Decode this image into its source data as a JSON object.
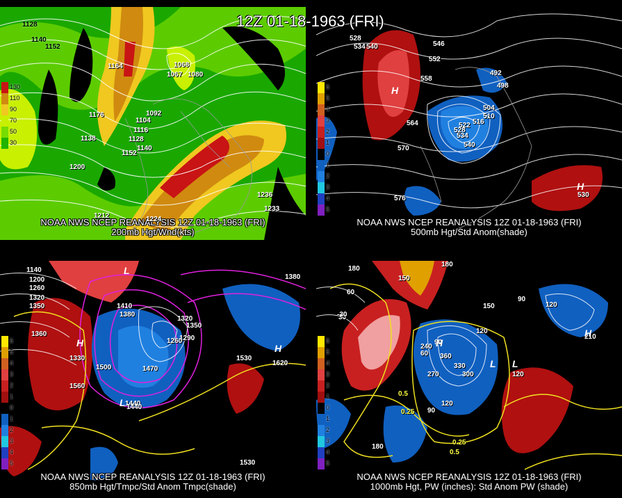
{
  "title": "12Z 01-18-1963 (FRI)",
  "panels": [
    {
      "id": "p1",
      "caption_line1": "NOAA NWS NCEP REANALYSIS 12Z 01-18-1963 (FRI)",
      "caption_line2": "200mb Hgt/Wnd(kts)",
      "legend": [
        {
          "label": "130",
          "color": "#c81414"
        },
        {
          "label": "110",
          "color": "#d08a10"
        },
        {
          "label": "90",
          "color": "#f0c820"
        },
        {
          "label": "70",
          "color": "#c8f000"
        },
        {
          "label": "50",
          "color": "#78dc00"
        },
        {
          "label": "30",
          "color": "#20b400"
        }
      ],
      "contour_labels": [
        "1128",
        "1140",
        "1152",
        "1164",
        "1068",
        "1067",
        "1080",
        "1092",
        "1104",
        "1116",
        "1128",
        "1138",
        "1152",
        "1140",
        "1176",
        "1200",
        "1212",
        "1224",
        "1236",
        "1233"
      ]
    },
    {
      "id": "p2",
      "caption_line1": "NOAA NWS NCEP REANALYSIS 12Z 01-18-1963 (FRI)",
      "caption_line2": "500mb Hgt/Std Anom(shade)",
      "legend": [
        {
          "label": "6",
          "color": "#ffe800"
        },
        {
          "label": "5",
          "color": "#e0a000"
        },
        {
          "label": "4",
          "color": "#d06020"
        },
        {
          "label": "3",
          "color": "#e04040"
        },
        {
          "label": "2",
          "color": "#c82020"
        },
        {
          "label": "1",
          "color": "#a01010"
        },
        {
          "label": "0",
          "color": "#000000"
        },
        {
          "label": "1",
          "color": "#1060c0"
        },
        {
          "label": "2",
          "color": "#2080e0"
        },
        {
          "label": "3",
          "color": "#20c8e0"
        },
        {
          "label": "4",
          "color": "#2040c0"
        },
        {
          "label": "5",
          "color": "#8020c0"
        }
      ],
      "contour_labels": [
        "528",
        "534",
        "540",
        "546",
        "552",
        "558",
        "564",
        "570",
        "576",
        "492",
        "498",
        "504",
        "510",
        "516",
        "522",
        "528",
        "534",
        "540",
        "530"
      ],
      "hl": [
        "H",
        "H"
      ]
    },
    {
      "id": "p3",
      "caption_line1": "NOAA NWS NCEP REANALYSIS 12Z 01-18-1963 (FRI)",
      "caption_line2": "850mb Hgt/Tmpc/Std Anom Tmpc(shade)",
      "contour_labels": [
        "1140",
        "1200",
        "1260",
        "1320",
        "1350",
        "1360",
        "1330",
        "1560",
        "1500",
        "1470",
        "1440",
        "1410",
        "1380",
        "1350",
        "1320",
        "1290",
        "1260",
        "1530",
        "1620",
        "1380",
        "1530",
        "1440"
      ],
      "hl": [
        "H",
        "L",
        "H",
        "L"
      ]
    },
    {
      "id": "p4",
      "caption_line1": "NOAA NWS NCEP REANALYSIS 12Z 01-18-1963 (FRI)",
      "caption_line2": "1000mb Hgt, PW (inches): Std Anom PW (shade)",
      "contour_labels": [
        "180",
        "150",
        "60",
        "90",
        "120",
        "180",
        "150",
        "120",
        "90",
        "60",
        "30",
        "-30",
        "360",
        "330",
        "300",
        "270",
        "240",
        "120",
        "90",
        "180",
        "0.25",
        "0.5",
        "0.25",
        "0.5",
        "120",
        "210"
      ],
      "hl": [
        "H",
        "L",
        "H",
        "L"
      ]
    }
  ]
}
